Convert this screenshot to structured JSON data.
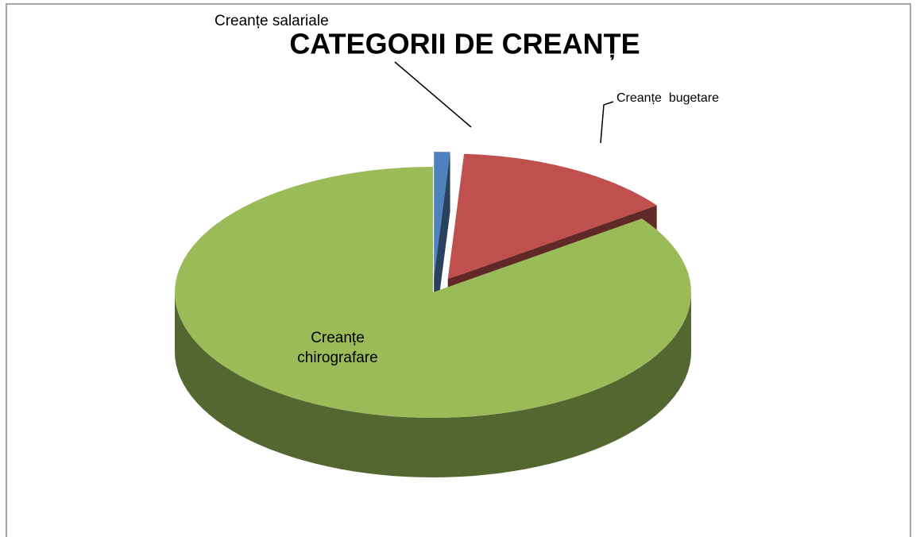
{
  "chart_data": {
    "type": "pie3d",
    "title": "CATEGORII DE CREANȚE",
    "categories": [
      "Creanțe salariale",
      "Creanțe  bugetare",
      "Creanțe chirografare"
    ],
    "values": [
      1,
      14,
      85
    ],
    "colors": [
      "#4f81bd",
      "#c0504d",
      "#9bbb59"
    ]
  }
}
